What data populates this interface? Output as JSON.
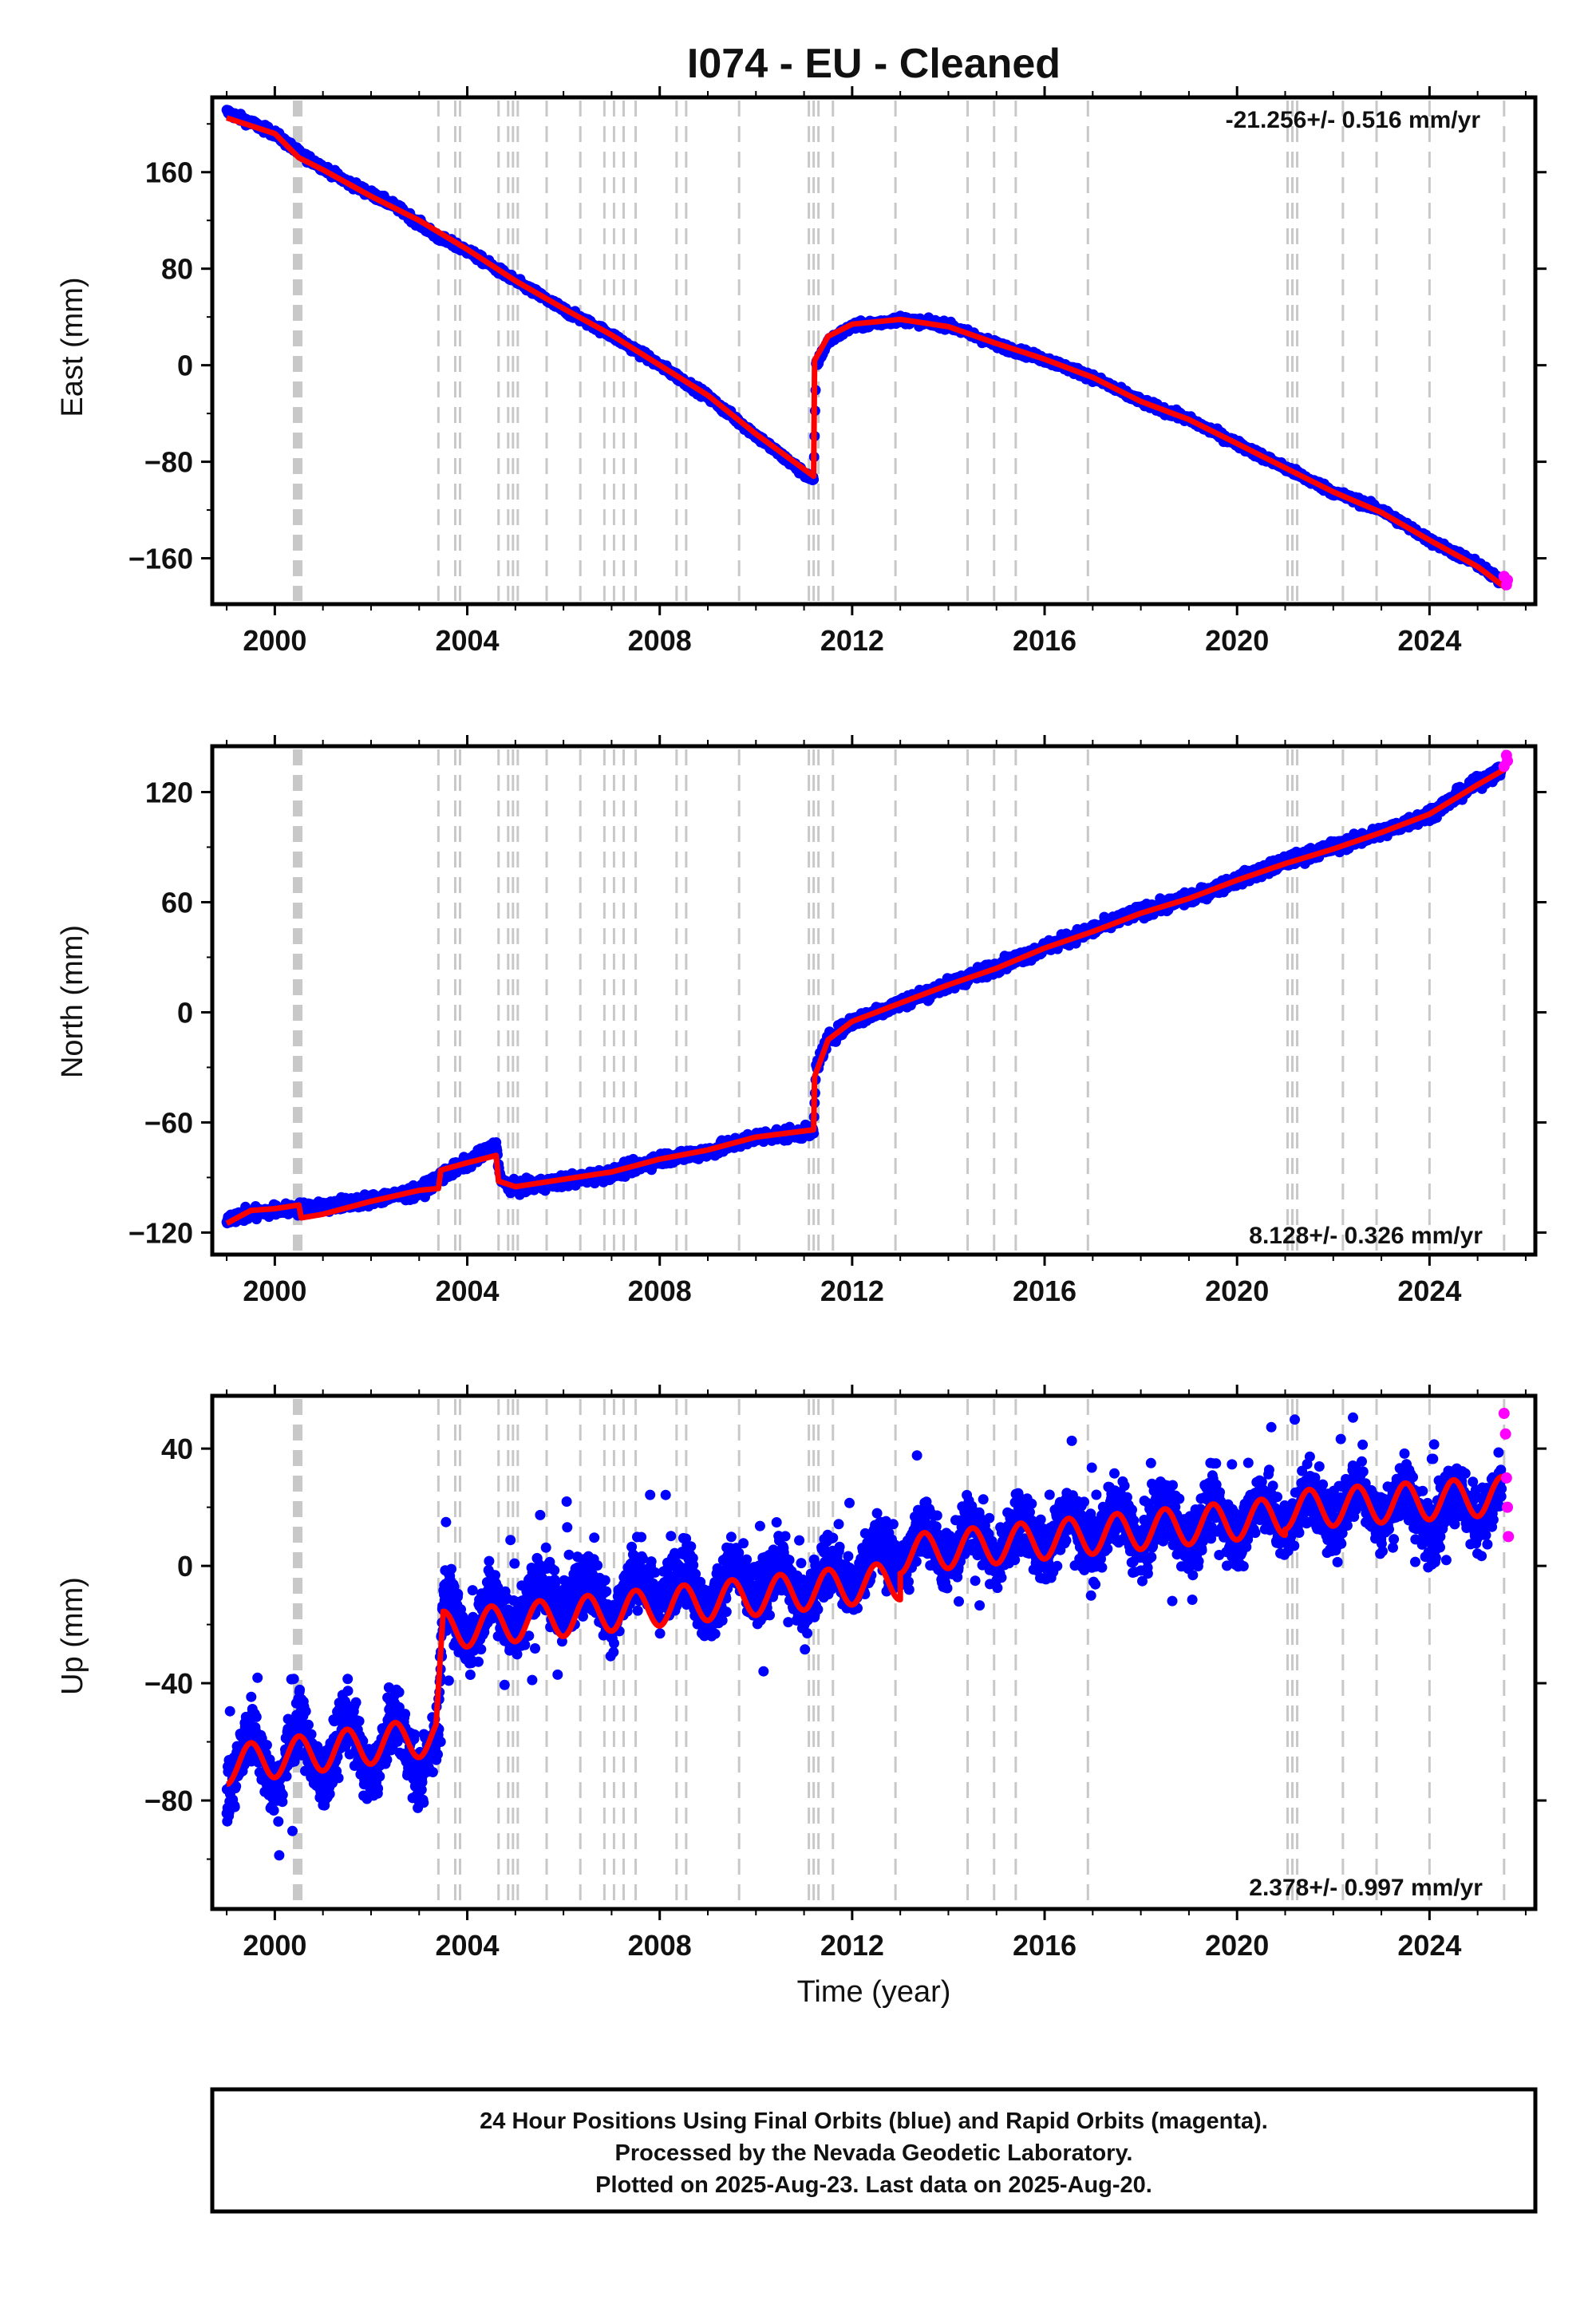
{
  "chart_data": [
    {
      "type": "scatter",
      "title": "I074  - EU - Cleaned",
      "ylabel": "East (mm)",
      "xlabel": "",
      "xlim": [
        1998.7,
        2026.2
      ],
      "ylim": [
        -198,
        222
      ],
      "yticks": [
        -160,
        -80,
        0,
        80,
        160
      ],
      "xticks": [
        2000,
        2004,
        2008,
        2012,
        2016,
        2020,
        2024
      ],
      "rate_text": "-21.256+/- 0.516 mm/yr",
      "rate_position": "top-right",
      "series": [
        {
          "name": "Final Orbits",
          "color": "#0000ff",
          "x": [
            1999.0,
            1999.5,
            2000.0,
            2000.5,
            2001.5,
            2002.5,
            2003.4,
            2004.0,
            2005.0,
            2006.0,
            2007.0,
            2008.0,
            2009.0,
            2010.0,
            2011.2,
            2011.25,
            2011.5,
            2012.0,
            2013.0,
            2014.0,
            2015.0,
            2016.0,
            2017.0,
            2018.0,
            2019.0,
            2020.0,
            2021.0,
            2022.0,
            2023.0,
            2024.0,
            2025.0,
            2025.5
          ],
          "y": [
            210,
            201,
            192,
            176,
            152,
            132,
            106,
            95,
            70,
            46,
            25,
            0,
            -26,
            -58,
            -96,
            0,
            20,
            32,
            38,
            33,
            17,
            5,
            -10,
            -30,
            -45,
            -65,
            -85,
            -105,
            -120,
            -145,
            -165,
            -180
          ]
        },
        {
          "name": "Rapid Orbits",
          "color": "#ff00ff",
          "x": [
            2025.55,
            2025.6,
            2025.62
          ],
          "y": [
            -175,
            -182,
            -178
          ]
        }
      ],
      "model": {
        "color": "#ff0000",
        "x": [
          1999.0,
          2000.0,
          2000.5,
          2001.0,
          2002.0,
          2003.0,
          2004.0,
          2005.0,
          2006.0,
          2007.0,
          2008.0,
          2009.0,
          2010.0,
          2011.2,
          2011.22,
          2011.5,
          2012.0,
          2013.0,
          2014.0,
          2015.0,
          2016.0,
          2017.0,
          2018.0,
          2019.0,
          2020.0,
          2021.0,
          2022.0,
          2023.0,
          2024.0,
          2025.0,
          2025.6
        ],
        "y": [
          205,
          192,
          172,
          162,
          140,
          120,
          96,
          70,
          47,
          25,
          0,
          -25,
          -57,
          -92,
          4,
          24,
          34,
          38,
          32,
          18,
          5,
          -10,
          -30,
          -45,
          -65,
          -85,
          -105,
          -122,
          -145,
          -167,
          -185
        ]
      },
      "breaks": [
        2000.4,
        2000.45,
        2000.5,
        2000.55,
        2003.4,
        2003.75,
        2003.85,
        2004.65,
        2004.85,
        2004.95,
        2005.05,
        2005.65,
        2006.35,
        2006.85,
        2007.05,
        2007.25,
        2007.5,
        2008.35,
        2008.55,
        2009.65,
        2011.1,
        2011.2,
        2011.3,
        2011.6,
        2012.9,
        2014.4,
        2014.95,
        2015.4,
        2016.9,
        2021.05,
        2021.15,
        2021.25,
        2022.2,
        2022.9,
        2024.0,
        2025.55
      ]
    },
    {
      "type": "scatter",
      "ylabel": "North (mm)",
      "xlabel": "",
      "xlim": [
        1998.7,
        2026.2
      ],
      "ylim": [
        -132,
        145
      ],
      "yticks": [
        -120,
        -60,
        0,
        60,
        120
      ],
      "xticks": [
        2000,
        2004,
        2008,
        2012,
        2016,
        2020,
        2024
      ],
      "rate_text": "8.128+/- 0.326 mm/yr",
      "rate_position": "bottom-right",
      "series": [
        {
          "name": "Final Orbits",
          "color": "#0000ff",
          "x": [
            1999.0,
            2000.0,
            2001.0,
            2002.0,
            2003.0,
            2003.4,
            2004.0,
            2004.6,
            2004.7,
            2005.0,
            2006.0,
            2007.0,
            2008.0,
            2009.0,
            2010.0,
            2011.2,
            2011.25,
            2011.5,
            2012.0,
            2013.0,
            2014.0,
            2015.0,
            2016.0,
            2017.0,
            2018.0,
            2019.0,
            2020.0,
            2021.0,
            2022.0,
            2023.0,
            2024.0,
            2025.0,
            2025.5
          ],
          "y": [
            -112,
            -108,
            -106,
            -102,
            -98,
            -90,
            -82,
            -73,
            -92,
            -96,
            -92,
            -88,
            -80,
            -76,
            -68,
            -65,
            -30,
            -15,
            -5,
            5,
            15,
            25,
            35,
            45,
            55,
            62,
            72,
            82,
            90,
            98,
            108,
            125,
            132
          ]
        },
        {
          "name": "Rapid Orbits",
          "color": "#ff00ff",
          "x": [
            2025.55,
            2025.6,
            2025.62
          ],
          "y": [
            134,
            140,
            137
          ]
        }
      ],
      "model": {
        "color": "#ff0000",
        "x": [
          1999.0,
          1999.5,
          2000.0,
          2000.5,
          2000.55,
          2001.0,
          2002.0,
          2003.0,
          2003.4,
          2003.45,
          2004.0,
          2004.6,
          2004.65,
          2005.0,
          2006.0,
          2007.0,
          2008.0,
          2009.0,
          2010.0,
          2011.2,
          2011.22,
          2011.5,
          2012.0,
          2013.0,
          2014.0,
          2015.0,
          2016.0,
          2017.0,
          2018.0,
          2019.0,
          2020.0,
          2021.0,
          2022.0,
          2023.0,
          2024.0,
          2025.0,
          2025.6
        ],
        "y": [
          -115,
          -108,
          -107,
          -105,
          -112,
          -110,
          -103,
          -97,
          -96,
          -86,
          -82,
          -78,
          -92,
          -95,
          -91,
          -87,
          -80,
          -75,
          -68,
          -64,
          -35,
          -15,
          -5,
          5,
          15,
          24,
          35,
          44,
          54,
          62,
          72,
          81,
          89,
          98,
          108,
          124,
          133
        ]
      },
      "breaks": [
        2000.4,
        2000.45,
        2000.5,
        2000.55,
        2003.4,
        2003.75,
        2003.85,
        2004.65,
        2004.85,
        2004.95,
        2005.05,
        2005.65,
        2006.35,
        2006.85,
        2007.05,
        2007.25,
        2007.5,
        2008.35,
        2008.55,
        2009.65,
        2011.1,
        2011.2,
        2011.3,
        2011.6,
        2012.9,
        2014.4,
        2014.95,
        2015.4,
        2016.9,
        2021.05,
        2021.15,
        2021.25,
        2022.2,
        2022.9,
        2024.0,
        2025.55
      ]
    },
    {
      "type": "scatter",
      "ylabel": "Up (mm)",
      "xlabel": "Time (year)",
      "xlim": [
        1998.7,
        2026.2
      ],
      "ylim": [
        -117,
        58
      ],
      "yticks": [
        -80,
        -40,
        0,
        40
      ],
      "xticks": [
        2000,
        2004,
        2008,
        2012,
        2016,
        2020,
        2024
      ],
      "rate_text": "2.378+/- 0.997 mm/yr",
      "rate_position": "bottom-right",
      "series": [
        {
          "name": "Final Orbits",
          "color": "#0000ff",
          "x": [
            1999.0,
            1999.5,
            2000.0,
            2000.5,
            2001.0,
            2001.5,
            2002.0,
            2002.5,
            2003.0,
            2003.4,
            2003.5,
            2004.0,
            2005.0,
            2006.0,
            2007.0,
            2008.0,
            2009.0,
            2010.0,
            2011.0,
            2012.0,
            2013.0,
            2014.0,
            2015.0,
            2016.0,
            2017.0,
            2018.0,
            2019.0,
            2020.0,
            2021.0,
            2022.0,
            2023.0,
            2024.0,
            2025.0,
            2025.5
          ],
          "y": [
            -72,
            -62,
            -70,
            -60,
            -68,
            -58,
            -66,
            -58,
            -65,
            -60,
            -15,
            -20,
            -15,
            -8,
            -12,
            -5,
            -10,
            -4,
            -8,
            -2,
            5,
            8,
            8,
            10,
            12,
            13,
            14,
            16,
            18,
            20,
            22,
            18,
            22,
            18
          ]
        },
        {
          "name": "Rapid Orbits",
          "color": "#ff00ff",
          "x": [
            2025.55,
            2025.58,
            2025.6,
            2025.62,
            2025.64
          ],
          "y": [
            52,
            45,
            30,
            20,
            10
          ]
        }
      ],
      "model": {
        "color": "#ff0000",
        "harmonic": {
          "amplitude": 6.5,
          "period_years": 1.0
        },
        "segments": [
          {
            "x0": 1999.0,
            "x1": 2003.35,
            "y0": -68,
            "y1": -58
          },
          {
            "x0": 2003.5,
            "x1": 2013.0,
            "y0": -22,
            "y1": -5
          },
          {
            "x0": 2013.0,
            "x1": 2021.0,
            "y0": 4,
            "y1": 17
          },
          {
            "x0": 2021.0,
            "x1": 2025.6,
            "y0": 19,
            "y1": 24
          }
        ],
        "step": {
          "x": 2003.4,
          "y0": -55,
          "y1": -16
        }
      },
      "breaks": [
        2000.4,
        2000.45,
        2000.5,
        2000.55,
        2003.4,
        2003.75,
        2003.85,
        2004.65,
        2004.85,
        2004.95,
        2005.05,
        2005.65,
        2006.35,
        2006.85,
        2007.05,
        2007.25,
        2007.5,
        2008.35,
        2008.55,
        2009.65,
        2011.1,
        2011.2,
        2011.3,
        2011.6,
        2012.9,
        2014.4,
        2014.95,
        2015.4,
        2016.9,
        2021.05,
        2021.15,
        2021.25,
        2022.2,
        2022.9,
        2024.0,
        2025.55
      ]
    }
  ],
  "footer": {
    "line1": "24 Hour Positions Using Final Orbits (blue) and Rapid Orbits (magenta).",
    "line2": "Processed by the Nevada Geodetic Laboratory.",
    "line3": "Plotted on 2025-Aug-23. Last data on 2025-Aug-20."
  },
  "colors": {
    "final": "#0000ff",
    "rapid": "#ff00ff",
    "model": "#ff0000",
    "breaks": "#c8c8c8"
  }
}
